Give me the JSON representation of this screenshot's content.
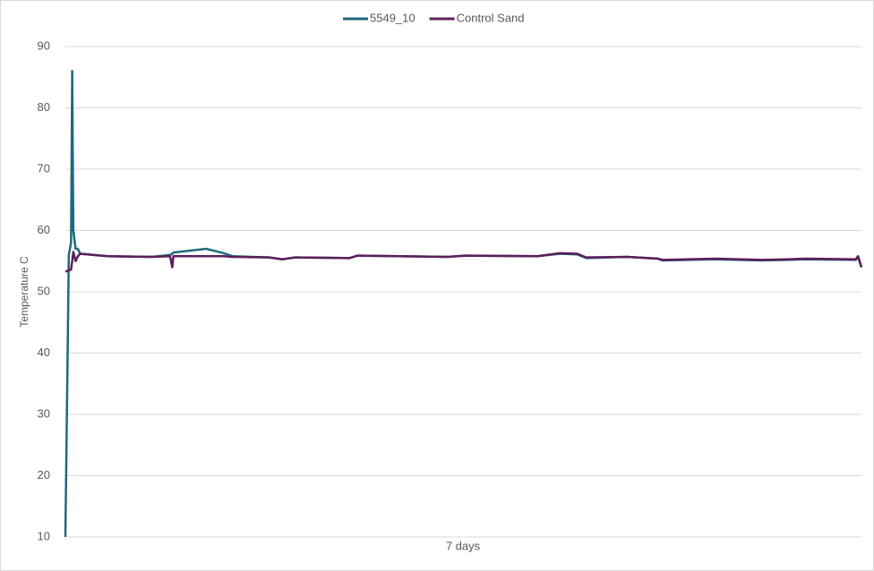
{
  "chart_data": {
    "type": "line",
    "x_label": "7 days",
    "y_label": "Temperature C",
    "x": [
      0,
      0.02,
      0.03,
      0.05,
      0.06,
      0.07,
      0.09,
      0.11,
      0.13,
      0.37,
      0.76,
      0.92,
      0.94,
      0.95,
      1.24,
      1.39,
      1.47,
      1.79,
      1.91,
      2.02,
      2.5,
      2.57,
      3.36,
      3.52,
      4.15,
      4.35,
      4.5,
      4.58,
      4.94,
      5.21,
      5.25,
      5.72,
      6.12,
      6.35,
      6.51,
      6.95,
      6.97,
      7.0
    ],
    "xlim": [
      0,
      7
    ],
    "series": [
      {
        "name": "5549_10",
        "color": "#1d6b7c",
        "values": [
          10,
          40,
          56,
          58,
          86,
          60,
          57,
          57,
          56.2,
          55.8,
          55.7,
          56,
          56.2,
          56.4,
          57,
          56.3,
          55.8,
          55.6,
          55.3,
          55.6,
          55.5,
          55.9,
          55.7,
          55.9,
          55.8,
          56.2,
          56.1,
          55.5,
          55.7,
          55.4,
          55.1,
          55.3,
          55.1,
          55.2,
          55.3,
          55.2,
          55.7,
          54
        ]
      },
      {
        "name": "Control Sand",
        "color": "#5c1f5b",
        "values": [
          53.3,
          53.4,
          53.5,
          53.6,
          55,
          56.5,
          55,
          55.8,
          56.2,
          55.8,
          55.7,
          55.8,
          54,
          55.8,
          55.8,
          55.8,
          55.7,
          55.6,
          55.3,
          55.6,
          55.5,
          55.9,
          55.7,
          55.9,
          55.8,
          56.3,
          56.2,
          55.6,
          55.7,
          55.4,
          55.2,
          55.4,
          55.2,
          55.3,
          55.4,
          55.3,
          55.8,
          54
        ]
      }
    ],
    "ylim": [
      10,
      90
    ],
    "yticks": [
      10,
      20,
      30,
      40,
      50,
      60,
      70,
      80,
      90
    ],
    "grid": true,
    "legend": "top"
  }
}
